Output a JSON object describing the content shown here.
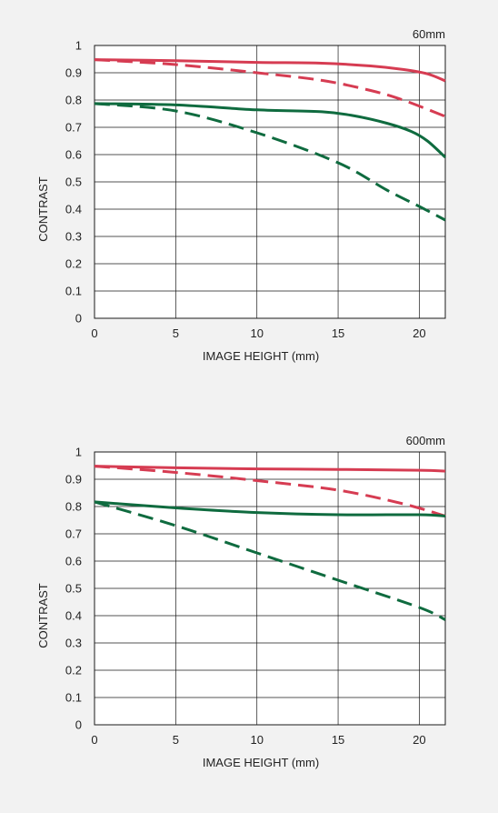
{
  "chart_data": [
    {
      "type": "line",
      "focal_length_label": "60mm",
      "xlabel": "IMAGE HEIGHT (mm)",
      "ylabel": "CONTRAST",
      "xlim": [
        0,
        21.6
      ],
      "ylim": [
        0,
        1
      ],
      "xticks": [
        "0",
        "5",
        "10",
        "15",
        "20"
      ],
      "yticks": [
        "0",
        "0.1",
        "0.2",
        "0.3",
        "0.4",
        "0.5",
        "0.6",
        "0.7",
        "0.8",
        "0.9",
        "1"
      ],
      "grid": true,
      "series": [
        {
          "color": "#d63c52",
          "style": "solid",
          "x": [
            0,
            5,
            10,
            14,
            17,
            19,
            20.5,
            21.6
          ],
          "y": [
            0.948,
            0.944,
            0.938,
            0.935,
            0.925,
            0.912,
            0.896,
            0.87
          ]
        },
        {
          "color": "#d63c52",
          "style": "dashed",
          "x": [
            0,
            5,
            10,
            14,
            17,
            19,
            21.6
          ],
          "y": [
            0.948,
            0.93,
            0.9,
            0.872,
            0.835,
            0.8,
            0.74
          ]
        },
        {
          "color": "#0f6b3f",
          "style": "solid",
          "x": [
            0,
            5,
            10,
            14,
            16,
            18,
            19.5,
            20.5,
            21.6
          ],
          "y": [
            0.787,
            0.782,
            0.764,
            0.757,
            0.742,
            0.715,
            0.685,
            0.65,
            0.59
          ]
        },
        {
          "color": "#0f6b3f",
          "style": "dashed",
          "x": [
            0,
            5,
            10,
            15,
            18,
            20,
            21.6
          ],
          "y": [
            0.787,
            0.76,
            0.68,
            0.57,
            0.47,
            0.41,
            0.36
          ]
        }
      ]
    },
    {
      "type": "line",
      "focal_length_label": "600mm",
      "xlabel": "IMAGE HEIGHT (mm)",
      "ylabel": "CONTRAST",
      "xlim": [
        0,
        21.6
      ],
      "ylim": [
        0,
        1
      ],
      "xticks": [
        "0",
        "5",
        "10",
        "15",
        "20"
      ],
      "yticks": [
        "0",
        "0.1",
        "0.2",
        "0.3",
        "0.4",
        "0.5",
        "0.6",
        "0.7",
        "0.8",
        "0.9",
        "1"
      ],
      "grid": true,
      "series": [
        {
          "color": "#d63c52",
          "style": "solid",
          "x": [
            0,
            5,
            10,
            15,
            20,
            21.6
          ],
          "y": [
            0.948,
            0.942,
            0.938,
            0.936,
            0.933,
            0.93
          ]
        },
        {
          "color": "#d63c52",
          "style": "dashed",
          "x": [
            0,
            5,
            10,
            15,
            19,
            21.6
          ],
          "y": [
            0.948,
            0.925,
            0.895,
            0.86,
            0.81,
            0.765
          ]
        },
        {
          "color": "#0f6b3f",
          "style": "solid",
          "x": [
            0,
            5,
            10,
            15,
            20,
            21.6
          ],
          "y": [
            0.817,
            0.795,
            0.778,
            0.77,
            0.77,
            0.765
          ]
        },
        {
          "color": "#0f6b3f",
          "style": "dashed",
          "x": [
            0,
            5,
            10,
            15,
            20,
            21.6
          ],
          "y": [
            0.817,
            0.73,
            0.63,
            0.53,
            0.43,
            0.385
          ]
        }
      ]
    }
  ]
}
